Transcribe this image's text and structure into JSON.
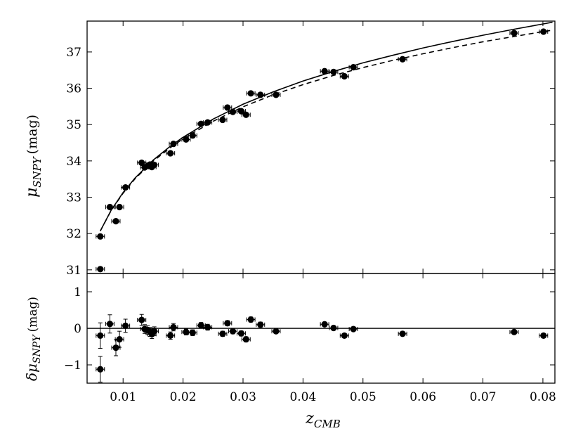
{
  "chart_data": [
    {
      "panel": "top",
      "type": "scatter",
      "title": "",
      "xlabel": "z_CMB",
      "ylabel": "μ_SNPY (mag)",
      "xlim": [
        0.004,
        0.082
      ],
      "ylim": [
        30.9,
        37.85
      ],
      "xticks": [
        0.01,
        0.02,
        0.03,
        0.04,
        0.05,
        0.06,
        0.07,
        0.08
      ],
      "xtick_labels": [
        "0.01",
        "0.02",
        "0.03",
        "0.04",
        "0.05",
        "0.06",
        "0.07",
        "0.08"
      ],
      "yticks": [
        31,
        32,
        33,
        34,
        35,
        36,
        37
      ],
      "ytick_labels": [
        "31",
        "32",
        "33",
        "34",
        "35",
        "36",
        "37"
      ],
      "grid": false,
      "legend": "none",
      "points": [
        {
          "x": 0.0062,
          "y": 31.02,
          "xerr": 0.0007,
          "yerr": 0.04
        },
        {
          "x": 0.0062,
          "y": 31.92,
          "xerr": 0.0007,
          "yerr": 0.04
        },
        {
          "x": 0.0078,
          "y": 32.73,
          "xerr": 0.0007,
          "yerr": 0.04
        },
        {
          "x": 0.0088,
          "y": 32.34,
          "xerr": 0.0007,
          "yerr": 0.04
        },
        {
          "x": 0.0094,
          "y": 32.73,
          "xerr": 0.0007,
          "yerr": 0.04
        },
        {
          "x": 0.0104,
          "y": 33.27,
          "xerr": 0.0007,
          "yerr": 0.04
        },
        {
          "x": 0.0131,
          "y": 33.95,
          "xerr": 0.0007,
          "yerr": 0.04
        },
        {
          "x": 0.0136,
          "y": 33.82,
          "xerr": 0.0007,
          "yerr": 0.04
        },
        {
          "x": 0.0141,
          "y": 33.87,
          "xerr": 0.0007,
          "yerr": 0.04
        },
        {
          "x": 0.0145,
          "y": 33.9,
          "xerr": 0.0007,
          "yerr": 0.04
        },
        {
          "x": 0.0148,
          "y": 33.83,
          "xerr": 0.0007,
          "yerr": 0.04
        },
        {
          "x": 0.0152,
          "y": 33.89,
          "xerr": 0.0007,
          "yerr": 0.04
        },
        {
          "x": 0.0179,
          "y": 34.21,
          "xerr": 0.0007,
          "yerr": 0.04
        },
        {
          "x": 0.0184,
          "y": 34.47,
          "xerr": 0.0007,
          "yerr": 0.04
        },
        {
          "x": 0.0205,
          "y": 34.59,
          "xerr": 0.0007,
          "yerr": 0.04
        },
        {
          "x": 0.0216,
          "y": 34.7,
          "xerr": 0.0007,
          "yerr": 0.04
        },
        {
          "x": 0.023,
          "y": 35.02,
          "xerr": 0.0007,
          "yerr": 0.04
        },
        {
          "x": 0.0241,
          "y": 35.06,
          "xerr": 0.0007,
          "yerr": 0.04
        },
        {
          "x": 0.0266,
          "y": 35.13,
          "xerr": 0.0007,
          "yerr": 0.04
        },
        {
          "x": 0.0274,
          "y": 35.47,
          "xerr": 0.0007,
          "yerr": 0.04
        },
        {
          "x": 0.0283,
          "y": 35.35,
          "xerr": 0.0007,
          "yerr": 0.04
        },
        {
          "x": 0.0297,
          "y": 35.37,
          "xerr": 0.0007,
          "yerr": 0.04
        },
        {
          "x": 0.0305,
          "y": 35.27,
          "xerr": 0.0007,
          "yerr": 0.04
        },
        {
          "x": 0.0313,
          "y": 35.86,
          "xerr": 0.0007,
          "yerr": 0.04
        },
        {
          "x": 0.0329,
          "y": 35.82,
          "xerr": 0.0007,
          "yerr": 0.04
        },
        {
          "x": 0.0355,
          "y": 35.82,
          "xerr": 0.0007,
          "yerr": 0.04
        },
        {
          "x": 0.0436,
          "y": 36.47,
          "xerr": 0.0007,
          "yerr": 0.04
        },
        {
          "x": 0.0451,
          "y": 36.45,
          "xerr": 0.0007,
          "yerr": 0.04
        },
        {
          "x": 0.0469,
          "y": 36.33,
          "xerr": 0.0007,
          "yerr": 0.04
        },
        {
          "x": 0.0484,
          "y": 36.58,
          "xerr": 0.0007,
          "yerr": 0.04
        },
        {
          "x": 0.0566,
          "y": 36.8,
          "xerr": 0.0007,
          "yerr": 0.04
        },
        {
          "x": 0.0752,
          "y": 37.52,
          "xerr": 0.0007,
          "yerr": 0.04
        },
        {
          "x": 0.0801,
          "y": 37.56,
          "xerr": 0.0007,
          "yerr": 0.04
        }
      ],
      "curves": [
        {
          "style": "solid",
          "x": [
            0.0062,
            0.008,
            0.01,
            0.012,
            0.015,
            0.018,
            0.02,
            0.025,
            0.03,
            0.035,
            0.04,
            0.045,
            0.05,
            0.055,
            0.06,
            0.065,
            0.07,
            0.075,
            0.08,
            0.0816
          ],
          "y": [
            32.07,
            32.64,
            33.13,
            33.53,
            34.02,
            34.42,
            34.65,
            35.15,
            35.56,
            35.9,
            36.2,
            36.46,
            36.7,
            36.91,
            37.11,
            37.29,
            37.46,
            37.62,
            37.77,
            37.82
          ]
        },
        {
          "style": "dashed",
          "x": [
            0.0062,
            0.008,
            0.01,
            0.012,
            0.015,
            0.018,
            0.02,
            0.025,
            0.03,
            0.035,
            0.04,
            0.045,
            0.05,
            0.055,
            0.06,
            0.065,
            0.07,
            0.075,
            0.08,
            0.0816
          ],
          "y": [
            32.07,
            32.63,
            33.11,
            33.51,
            33.99,
            34.38,
            34.61,
            35.09,
            35.49,
            35.82,
            36.1,
            36.35,
            36.57,
            36.77,
            36.95,
            37.12,
            37.28,
            37.42,
            37.56,
            37.6
          ]
        }
      ]
    },
    {
      "panel": "bottom",
      "type": "scatter",
      "title": "",
      "xlabel": "z_CMB",
      "ylabel": "δμ_SNPY (mag)",
      "xlim": [
        0.004,
        0.082
      ],
      "ylim": [
        -1.5,
        1.5
      ],
      "xticks": [
        0.01,
        0.02,
        0.03,
        0.04,
        0.05,
        0.06,
        0.07,
        0.08
      ],
      "xtick_labels": [
        "0.01",
        "0.02",
        "0.03",
        "0.04",
        "0.05",
        "0.06",
        "0.07",
        "0.08"
      ],
      "yticks": [
        -1,
        0,
        1
      ],
      "ytick_labels": [
        "−1",
        "0",
        "1"
      ],
      "grid": false,
      "legend": "none",
      "reference_line": 0,
      "points": [
        {
          "x": 0.0062,
          "y": -1.12,
          "xerr": 0.0007,
          "yerr": 0.35
        },
        {
          "x": 0.0062,
          "y": -0.2,
          "xerr": 0.0007,
          "yerr": 0.35
        },
        {
          "x": 0.0078,
          "y": 0.12,
          "xerr": 0.0007,
          "yerr": 0.25
        },
        {
          "x": 0.0088,
          "y": -0.53,
          "xerr": 0.0007,
          "yerr": 0.22
        },
        {
          "x": 0.0094,
          "y": -0.3,
          "xerr": 0.0007,
          "yerr": 0.22
        },
        {
          "x": 0.0104,
          "y": 0.07,
          "xerr": 0.0007,
          "yerr": 0.18
        },
        {
          "x": 0.0131,
          "y": 0.23,
          "xerr": 0.0007,
          "yerr": 0.15
        },
        {
          "x": 0.0136,
          "y": -0.02,
          "xerr": 0.0007,
          "yerr": 0.12
        },
        {
          "x": 0.0141,
          "y": -0.05,
          "xerr": 0.0007,
          "yerr": 0.12
        },
        {
          "x": 0.0145,
          "y": -0.1,
          "xerr": 0.0007,
          "yerr": 0.12
        },
        {
          "x": 0.0148,
          "y": -0.16,
          "xerr": 0.0007,
          "yerr": 0.12
        },
        {
          "x": 0.0152,
          "y": -0.08,
          "xerr": 0.0007,
          "yerr": 0.12
        },
        {
          "x": 0.0179,
          "y": -0.2,
          "xerr": 0.0007,
          "yerr": 0.1
        },
        {
          "x": 0.0184,
          "y": 0.03,
          "xerr": 0.0007,
          "yerr": 0.1
        },
        {
          "x": 0.0205,
          "y": -0.1,
          "xerr": 0.0007,
          "yerr": 0.08
        },
        {
          "x": 0.0216,
          "y": -0.12,
          "xerr": 0.0007,
          "yerr": 0.08
        },
        {
          "x": 0.023,
          "y": 0.08,
          "xerr": 0.0007,
          "yerr": 0.08
        },
        {
          "x": 0.0241,
          "y": 0.03,
          "xerr": 0.0007,
          "yerr": 0.08
        },
        {
          "x": 0.0266,
          "y": -0.15,
          "xerr": 0.0007,
          "yerr": 0.07
        },
        {
          "x": 0.0274,
          "y": 0.14,
          "xerr": 0.0007,
          "yerr": 0.07
        },
        {
          "x": 0.0283,
          "y": -0.08,
          "xerr": 0.0007,
          "yerr": 0.07
        },
        {
          "x": 0.0297,
          "y": -0.14,
          "xerr": 0.0007,
          "yerr": 0.07
        },
        {
          "x": 0.0305,
          "y": -0.3,
          "xerr": 0.0007,
          "yerr": 0.07
        },
        {
          "x": 0.0313,
          "y": 0.24,
          "xerr": 0.0007,
          "yerr": 0.07
        },
        {
          "x": 0.0329,
          "y": 0.1,
          "xerr": 0.0007,
          "yerr": 0.07
        },
        {
          "x": 0.0355,
          "y": -0.08,
          "xerr": 0.0007,
          "yerr": 0.06
        },
        {
          "x": 0.0436,
          "y": 0.11,
          "xerr": 0.0007,
          "yerr": 0.05
        },
        {
          "x": 0.0451,
          "y": 0.01,
          "xerr": 0.0007,
          "yerr": 0.05
        },
        {
          "x": 0.0469,
          "y": -0.2,
          "xerr": 0.0007,
          "yerr": 0.05
        },
        {
          "x": 0.0484,
          "y": -0.02,
          "xerr": 0.0007,
          "yerr": 0.05
        },
        {
          "x": 0.0566,
          "y": -0.15,
          "xerr": 0.0007,
          "yerr": 0.05
        },
        {
          "x": 0.0752,
          "y": -0.1,
          "xerr": 0.0007,
          "yerr": 0.05
        },
        {
          "x": 0.0801,
          "y": -0.2,
          "xerr": 0.0007,
          "yerr": 0.05
        }
      ]
    }
  ],
  "labels": {
    "top_ylabel": {
      "main": "μ",
      "sub": "SNPY",
      "unit": "(mag)"
    },
    "bottom_ylabel": {
      "main": "δμ",
      "sub": "SNPY",
      "unit": "(mag)"
    },
    "xlabel": {
      "main": "z",
      "sub": "CMB"
    }
  }
}
